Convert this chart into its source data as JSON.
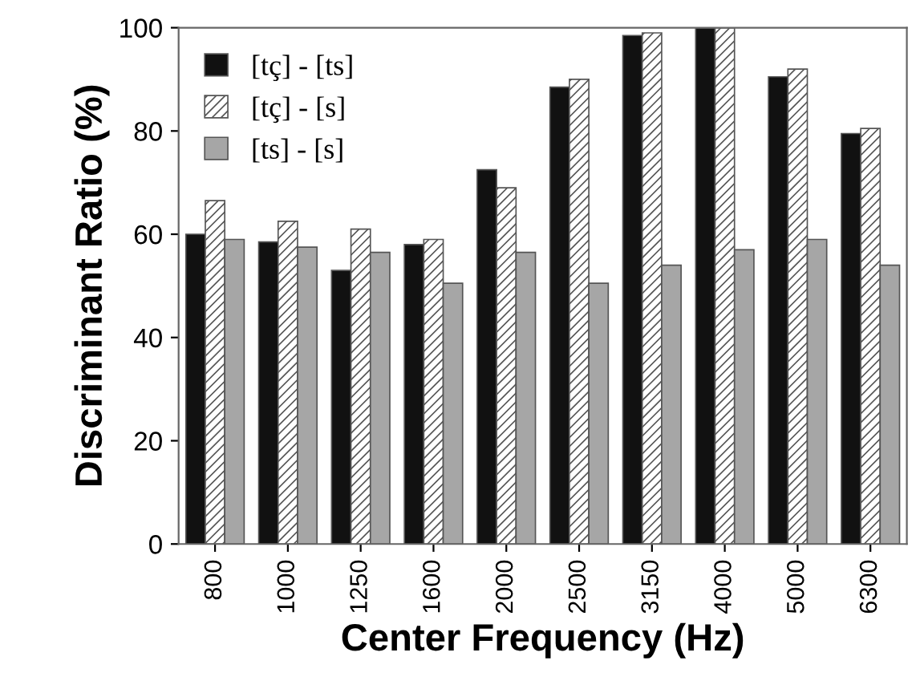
{
  "chart_data": {
    "type": "bar",
    "xlabel": "Center Frequency (Hz)",
    "ylabel": "Discriminant Ratio (%)",
    "categories": [
      "800",
      "1000",
      "1250",
      "1600",
      "2000",
      "2500",
      "3150",
      "4000",
      "5000",
      "6300"
    ],
    "series": [
      {
        "name": "[tç] - [ts]",
        "color": "#111111",
        "values": [
          60,
          58.5,
          53,
          58,
          72.5,
          88.5,
          98.5,
          100,
          90.5,
          79.5
        ]
      },
      {
        "name": "[tç] - [s]",
        "color": "#555555",
        "values": [
          66.5,
          62.5,
          61,
          59,
          69,
          90,
          99,
          100,
          92,
          80.5
        ]
      },
      {
        "name": "[ts] - [s]",
        "color": "#a6a6a6",
        "values": [
          59,
          57.5,
          56.5,
          50.5,
          56.5,
          50.5,
          54,
          57,
          59,
          54
        ]
      }
    ],
    "ylim": [
      0,
      100
    ],
    "yticks": [
      0,
      20,
      40,
      60,
      80,
      100
    ],
    "grid": false,
    "legend": "top left"
  }
}
